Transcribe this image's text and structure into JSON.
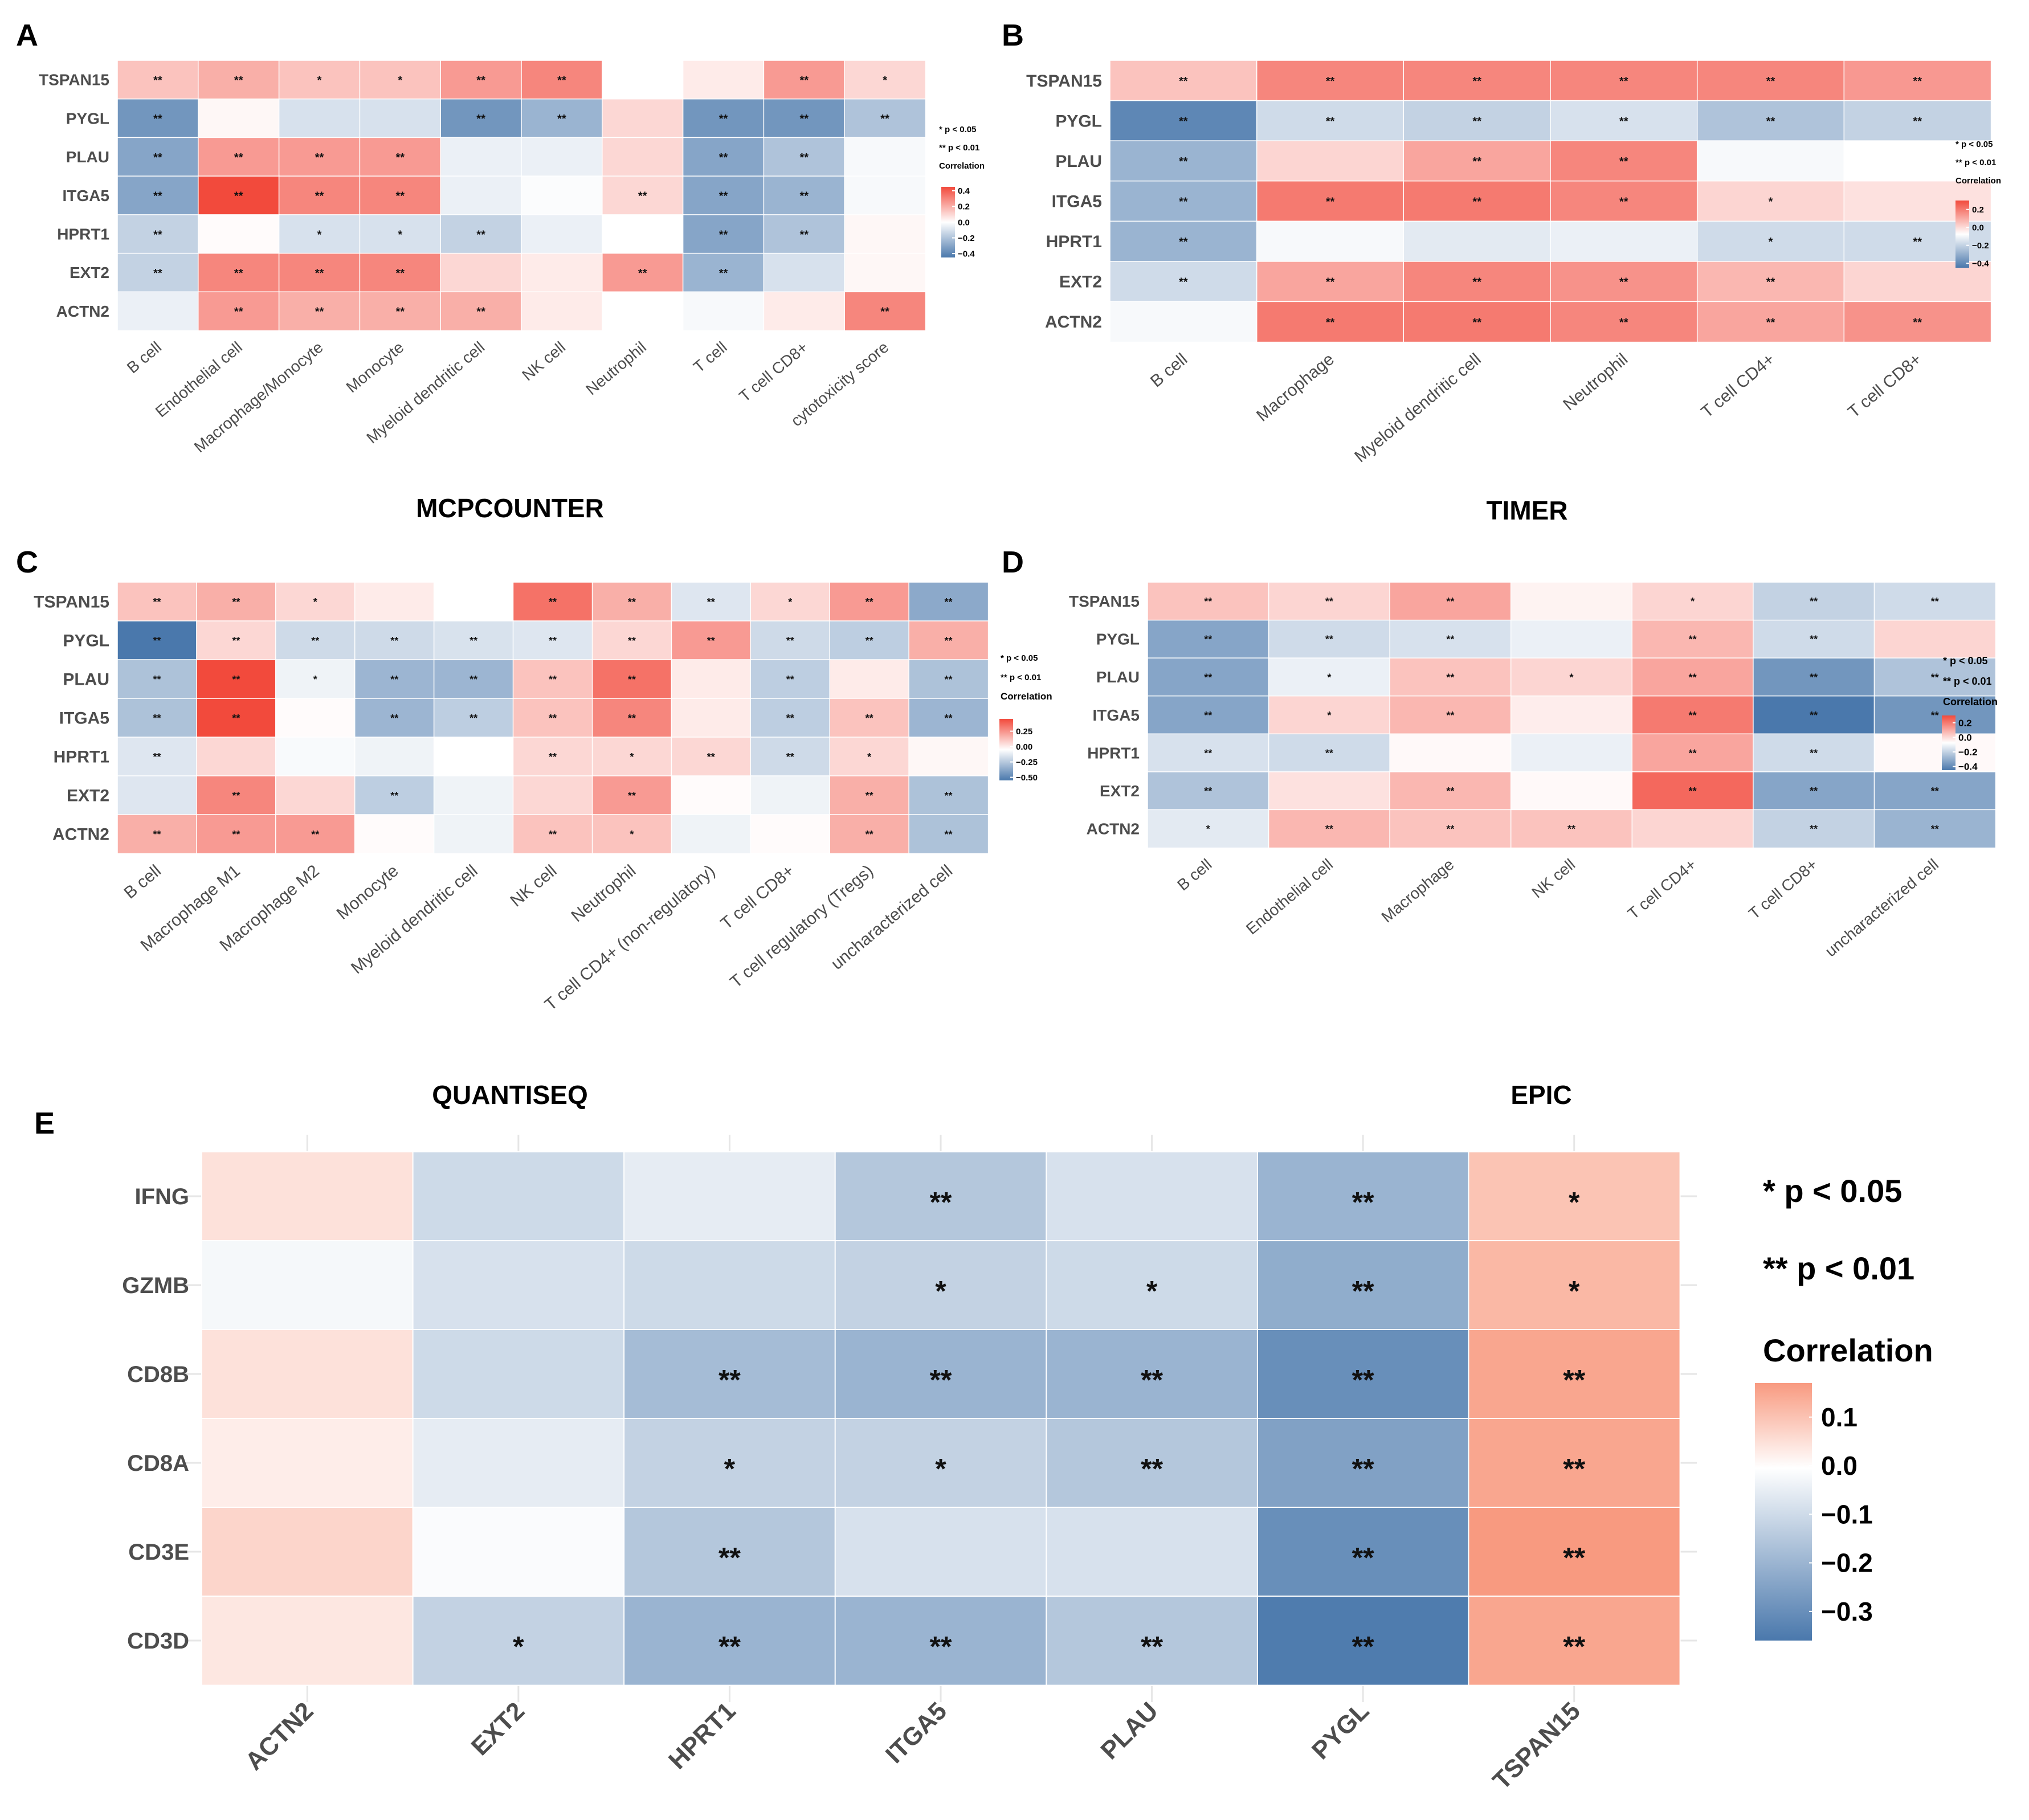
{
  "figure": {
    "panel_letters": [
      "A",
      "B",
      "C",
      "D",
      "E"
    ],
    "titles": [
      "MCPCOUNTER",
      "TIMER",
      "QUANTISEQ",
      "EPIC"
    ],
    "sig_legend": [
      "* p < 0.05",
      "** p < 0.01"
    ],
    "colorbar_title": "Correlation"
  },
  "colors": {
    "low": "#4a78ac",
    "mid": "#ffffff",
    "high": "#f24a3c",
    "e_high": "#f89a80"
  },
  "chart_data": [
    {
      "id": "A",
      "type": "heatmap",
      "title": "MCPCOUNTER",
      "rows": [
        "TSPAN15",
        "PYGL",
        "PLAU",
        "ITGA5",
        "HPRT1",
        "EXT2",
        "ACTN2"
      ],
      "cols": [
        "B cell",
        "Endothelial cell",
        "Macrophage/Monocyte",
        "Monocyte",
        "Myeloid dendritic cell",
        "NK cell",
        "Neutrophil",
        "T cell",
        "T cell CD8+",
        "cytotoxicity score"
      ],
      "values": [
        [
          0.15,
          0.2,
          0.15,
          0.15,
          0.25,
          0.3,
          0,
          0.05,
          0.25,
          0.1
        ],
        [
          -0.35,
          0.02,
          -0.1,
          -0.1,
          -0.35,
          -0.25,
          0.1,
          -0.35,
          -0.35,
          -0.2
        ],
        [
          -0.3,
          0.25,
          0.25,
          0.25,
          -0.05,
          -0.05,
          0.1,
          -0.3,
          -0.2,
          -0.02
        ],
        [
          -0.3,
          0.45,
          0.3,
          0.3,
          -0.05,
          -0.01,
          0.1,
          -0.3,
          -0.25,
          -0.02
        ],
        [
          -0.15,
          0.01,
          -0.1,
          -0.1,
          -0.15,
          -0.05,
          0,
          -0.3,
          -0.2,
          0.02
        ],
        [
          -0.15,
          0.3,
          0.3,
          0.3,
          0.1,
          0.05,
          0.25,
          -0.25,
          -0.1,
          0.02
        ],
        [
          -0.05,
          0.25,
          0.2,
          0.2,
          0.2,
          0.05,
          0,
          -0.02,
          0.05,
          0.3
        ]
      ],
      "stars": [
        [
          "**",
          "**",
          "*",
          "*",
          "**",
          "**",
          "",
          "",
          "**",
          "*"
        ],
        [
          "**",
          "",
          "",
          "",
          "**",
          "**",
          "",
          "**",
          "**",
          "**"
        ],
        [
          "**",
          "**",
          "**",
          "**",
          "",
          "",
          "",
          "**",
          "**",
          ""
        ],
        [
          "**",
          "**",
          "**",
          "**",
          "",
          "",
          "**",
          "**",
          "**",
          ""
        ],
        [
          "**",
          "",
          "*",
          "*",
          "**",
          "",
          "",
          "**",
          "**",
          ""
        ],
        [
          "**",
          "**",
          "**",
          "**",
          "",
          "",
          "**",
          "**",
          "",
          ""
        ],
        [
          "",
          "**",
          "**",
          "**",
          "**",
          "",
          "",
          "",
          "",
          "**"
        ]
      ],
      "scale_min": -0.45,
      "scale_max": 0.45,
      "colorbar_ticks": [
        0.4,
        0.2,
        0.0,
        -0.2,
        -0.4
      ],
      "colorbar_labels": [
        "0.4",
        "0.2",
        "0.0",
        "−0.2",
        "−0.4"
      ]
    },
    {
      "id": "B",
      "type": "heatmap",
      "title": "TIMER",
      "rows": [
        "TSPAN15",
        "PYGL",
        "PLAU",
        "ITGA5",
        "HPRT1",
        "EXT2",
        "ACTN2"
      ],
      "cols": [
        "B cell",
        "Macrophage",
        "Myeloid dendritic cell",
        "Neutrophil",
        "T cell CD4+",
        "T cell CD8+"
      ],
      "values": [
        [
          0.1,
          0.2,
          0.2,
          0.2,
          0.2,
          0.17
        ],
        [
          -0.4,
          -0.12,
          -0.15,
          -0.1,
          -0.2,
          -0.15
        ],
        [
          -0.25,
          0.07,
          0.15,
          0.2,
          -0.02,
          0
        ],
        [
          -0.25,
          0.22,
          0.22,
          0.2,
          0.07,
          0.05
        ],
        [
          -0.25,
          -0.02,
          -0.07,
          -0.05,
          -0.12,
          -0.12
        ],
        [
          -0.12,
          0.15,
          0.2,
          0.18,
          0.12,
          0.07
        ],
        [
          -0.02,
          0.22,
          0.22,
          0.2,
          0.15,
          0.18
        ]
      ],
      "stars": [
        [
          "**",
          "**",
          "**",
          "**",
          "**",
          "**"
        ],
        [
          "**",
          "**",
          "**",
          "**",
          "**",
          "**"
        ],
        [
          "**",
          "",
          "**",
          "**",
          "",
          ""
        ],
        [
          "**",
          "**",
          "**",
          "**",
          "*",
          ""
        ],
        [
          "**",
          "",
          "",
          "",
          "*",
          "**"
        ],
        [
          "**",
          "**",
          "**",
          "**",
          "**",
          ""
        ],
        [
          "",
          "**",
          "**",
          "**",
          "**",
          "**"
        ]
      ],
      "scale_min": -0.45,
      "scale_max": 0.3,
      "colorbar_ticks": [
        0.2,
        0.0,
        -0.2,
        -0.4
      ],
      "colorbar_labels": [
        "0.2",
        "0.0",
        "−0.2",
        "−0.4"
      ]
    },
    {
      "id": "C",
      "type": "heatmap",
      "title": "QUANTISEQ",
      "rows": [
        "TSPAN15",
        "PYGL",
        "PLAU",
        "ITGA5",
        "HPRT1",
        "EXT2",
        "ACTN2"
      ],
      "cols": [
        "B cell",
        "Macrophage M1",
        "Macrophage M2",
        "Monocyte",
        "Myeloid dendritic cell",
        "NK cell",
        "Neutrophil",
        "T cell CD4+ (non-regulatory)",
        "T cell CD8+",
        "T cell regulatory (Tregs)",
        "uncharacterized cell"
      ],
      "values": [
        [
          0.15,
          0.2,
          0.1,
          0.05,
          0,
          0.35,
          0.2,
          -0.1,
          0.1,
          0.25,
          -0.35
        ],
        [
          -0.55,
          0.1,
          -0.15,
          -0.15,
          -0.12,
          -0.1,
          0.1,
          0.25,
          -0.15,
          -0.2,
          0.2
        ],
        [
          -0.25,
          0.45,
          -0.05,
          -0.3,
          -0.3,
          0.15,
          0.35,
          0.05,
          -0.2,
          0.05,
          -0.25
        ],
        [
          -0.25,
          0.45,
          0.01,
          -0.3,
          -0.2,
          0.15,
          0.3,
          0.05,
          -0.2,
          0.15,
          -0.3
        ],
        [
          -0.1,
          0.1,
          -0.02,
          -0.05,
          0,
          0.1,
          0.1,
          0.1,
          -0.15,
          0.1,
          0.02
        ],
        [
          -0.1,
          0.3,
          0.1,
          -0.2,
          -0.05,
          0.1,
          0.25,
          0.01,
          -0.05,
          0.2,
          -0.25
        ],
        [
          0.2,
          0.25,
          0.25,
          0.01,
          -0.05,
          0.15,
          0.15,
          -0.05,
          0.01,
          0.2,
          -0.25
        ]
      ],
      "stars": [
        [
          "**",
          "**",
          "*",
          "",
          "",
          "**",
          "**",
          "**",
          "*",
          "**",
          "**"
        ],
        [
          "**",
          "**",
          "**",
          "**",
          "**",
          "**",
          "**",
          "**",
          "**",
          "**",
          "**"
        ],
        [
          "**",
          "**",
          "*",
          "**",
          "**",
          "**",
          "**",
          "",
          "**",
          "",
          "**"
        ],
        [
          "**",
          "**",
          "",
          "**",
          "**",
          "**",
          "**",
          "",
          "**",
          "**",
          "**"
        ],
        [
          "**",
          "",
          "",
          "",
          "",
          "**",
          "*",
          "**",
          "**",
          "*",
          ""
        ],
        [
          "",
          "**",
          "",
          "**",
          "",
          "",
          "**",
          "",
          "",
          "**",
          "**"
        ],
        [
          "**",
          "**",
          "**",
          "",
          "",
          "**",
          "*",
          "",
          "",
          "**",
          "**"
        ]
      ],
      "scale_min": -0.55,
      "scale_max": 0.45,
      "colorbar_ticks": [
        0.25,
        0.0,
        -0.25,
        -0.5
      ],
      "colorbar_labels": [
        "0.25",
        "0.00",
        "−0.25",
        "−0.50"
      ]
    },
    {
      "id": "D",
      "type": "heatmap",
      "title": "EPIC",
      "rows": [
        "TSPAN15",
        "PYGL",
        "PLAU",
        "ITGA5",
        "HPRT1",
        "EXT2",
        "ACTN2"
      ],
      "cols": [
        "B cell",
        "Endothelial cell",
        "Macrophage",
        "NK cell",
        "T cell CD4+",
        "T cell CD8+",
        "uncharacterized cell"
      ],
      "values": [
        [
          0.1,
          0.07,
          0.15,
          0.02,
          0.07,
          -0.15,
          -0.12
        ],
        [
          -0.3,
          -0.12,
          -0.1,
          -0.05,
          0.12,
          -0.12,
          0.07
        ],
        [
          -0.3,
          -0.05,
          0.1,
          0.07,
          0.15,
          -0.35,
          -0.2
        ],
        [
          -0.3,
          0.07,
          0.12,
          0.03,
          0.22,
          -0.45,
          -0.35
        ],
        [
          -0.1,
          -0.12,
          0.01,
          -0.05,
          0.15,
          -0.12,
          0.01
        ],
        [
          -0.2,
          0.05,
          0.12,
          0.01,
          0.25,
          -0.3,
          -0.3
        ],
        [
          -0.07,
          0.12,
          0.1,
          0.1,
          0.07,
          -0.15,
          -0.25
        ]
      ],
      "stars": [
        [
          "**",
          "**",
          "**",
          "",
          "*",
          "**",
          "**"
        ],
        [
          "**",
          "**",
          "**",
          "",
          "**",
          "**",
          ""
        ],
        [
          "**",
          "*",
          "**",
          "*",
          "**",
          "**",
          "**"
        ],
        [
          "**",
          "*",
          "**",
          "",
          "**",
          "**",
          "**"
        ],
        [
          "**",
          "**",
          "",
          "",
          "**",
          "**",
          ""
        ],
        [
          "**",
          "",
          "**",
          "",
          "**",
          "**",
          "**"
        ],
        [
          "*",
          "**",
          "**",
          "**",
          "",
          "**",
          "**"
        ]
      ],
      "scale_min": -0.45,
      "scale_max": 0.3,
      "colorbar_ticks": [
        0.2,
        0.0,
        -0.2,
        -0.4
      ],
      "colorbar_labels": [
        "0.2",
        "0.0",
        "−0.2",
        "−0.4"
      ]
    },
    {
      "id": "E",
      "type": "heatmap",
      "title": "",
      "rows": [
        "IFNG",
        "GZMB",
        "CD8B",
        "CD8A",
        "CD3E",
        "CD3D"
      ],
      "cols": [
        "ACTN2",
        "EXT2",
        "HPRT1",
        "ITGA5",
        "PLAU",
        "PYGL",
        "TSPAN15"
      ],
      "values": [
        [
          0.05,
          -0.1,
          -0.05,
          -0.15,
          -0.08,
          -0.2,
          0.1
        ],
        [
          -0.02,
          -0.08,
          -0.1,
          -0.12,
          -0.1,
          -0.22,
          0.12
        ],
        [
          0.05,
          -0.1,
          -0.18,
          -0.2,
          -0.2,
          -0.3,
          0.15
        ],
        [
          0.03,
          -0.05,
          -0.12,
          -0.12,
          -0.15,
          -0.25,
          0.15
        ],
        [
          0.07,
          -0.01,
          -0.15,
          -0.08,
          -0.08,
          -0.3,
          0.17
        ],
        [
          0.04,
          -0.12,
          -0.2,
          -0.2,
          -0.15,
          -0.35,
          0.15
        ]
      ],
      "stars": [
        [
          "",
          "",
          "",
          "**",
          "",
          "**",
          "*"
        ],
        [
          "",
          "",
          "",
          "*",
          "*",
          "**",
          "*"
        ],
        [
          "",
          "",
          "**",
          "**",
          "**",
          "**",
          "**"
        ],
        [
          "",
          "",
          "*",
          "*",
          "**",
          "**",
          "**"
        ],
        [
          "",
          "",
          "**",
          "",
          "",
          "**",
          "**"
        ],
        [
          "",
          "*",
          "**",
          "**",
          "**",
          "**",
          "**"
        ]
      ],
      "scale_min": -0.36,
      "scale_max": 0.17,
      "colorbar_ticks": [
        0.1,
        0.0,
        -0.1,
        -0.2,
        -0.3
      ],
      "colorbar_labels": [
        "0.1",
        "0.0",
        "−0.1",
        "−0.2",
        "−0.3"
      ]
    }
  ]
}
